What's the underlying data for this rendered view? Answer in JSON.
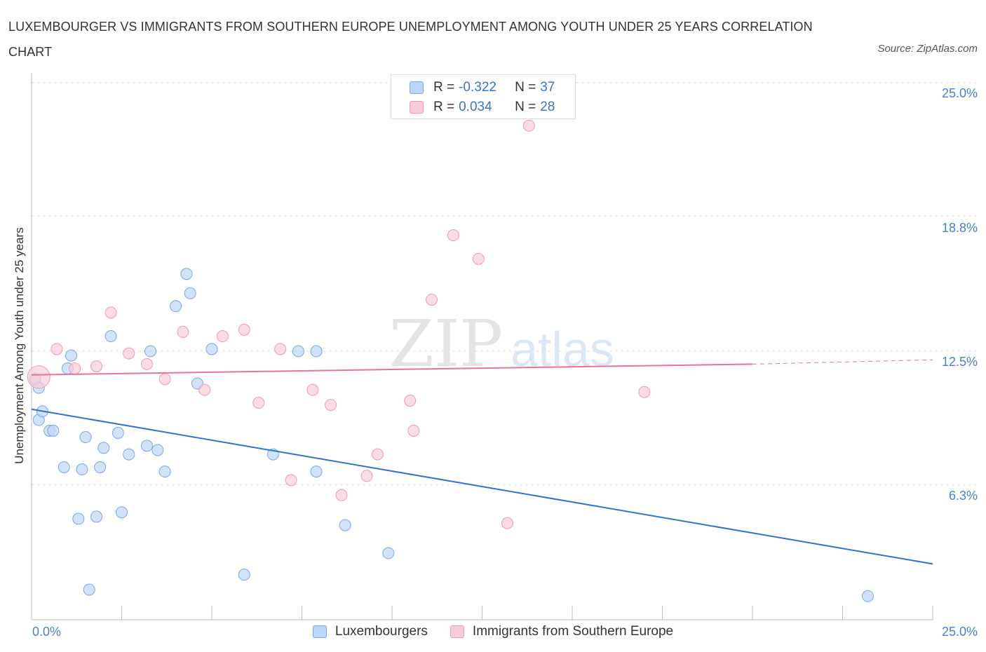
{
  "title": "LUXEMBOURGER VS IMMIGRANTS FROM SOUTHERN EUROPE UNEMPLOYMENT AMONG YOUTH UNDER 25 YEARS CORRELATION CHART",
  "source": "Source: ZipAtlas.com",
  "watermark": {
    "zip": "ZIP",
    "atlas": "atlas"
  },
  "legend_top": {
    "rows": [
      {
        "r_label": "R =",
        "r_value": "-0.322",
        "n_label": "N =",
        "n_value": "37"
      },
      {
        "r_label": "R =",
        "r_value": "0.034",
        "n_label": "N =",
        "n_value": "28"
      }
    ]
  },
  "legend_bottom": {
    "series1": "Luxembourgers",
    "series2": "Immigrants from Southern Europe"
  },
  "colors": {
    "blue_fill": "#bdd5f7",
    "blue_stroke": "#7aa6e6",
    "blue_line": "#2f73d1",
    "pink_fill": "#f9ccd9",
    "pink_stroke": "#ec9ab4",
    "pink_line": "#e8739a",
    "tick_text": "#4a7fcf",
    "grid": "#dddddd"
  },
  "chart_data": {
    "type": "scatter",
    "title": "LUXEMBOURGER VS IMMIGRANTS FROM SOUTHERN EUROPE UNEMPLOYMENT AMONG YOUTH UNDER 25 YEARS CORRELATION CHART",
    "xlabel": "",
    "ylabel": "Unemployment Among Youth under 25 years",
    "xlim": [
      0,
      25
    ],
    "ylim": [
      0,
      25
    ],
    "x_ticks": [
      "0.0%",
      "25.0%"
    ],
    "y_ticks": [
      {
        "value": 25.0,
        "label": "25.0%"
      },
      {
        "value": 18.8,
        "label": "18.8%"
      },
      {
        "value": 12.5,
        "label": "12.5%"
      },
      {
        "value": 6.3,
        "label": "6.3%"
      }
    ],
    "series": [
      {
        "name": "Luxembourgers",
        "r": -0.322,
        "n": 37,
        "trend": {
          "x": [
            0,
            25
          ],
          "y": [
            9.8,
            2.6
          ]
        },
        "points": [
          [
            0.1,
            11.2
          ],
          [
            0.2,
            9.3
          ],
          [
            0.3,
            9.7
          ],
          [
            0.5,
            8.8
          ],
          [
            0.6,
            8.8
          ],
          [
            0.2,
            10.8
          ],
          [
            0.9,
            7.1
          ],
          [
            1.1,
            12.3
          ],
          [
            1.0,
            11.7
          ],
          [
            1.4,
            7.0
          ],
          [
            1.5,
            8.5
          ],
          [
            1.3,
            4.7
          ],
          [
            1.8,
            4.8
          ],
          [
            2.0,
            8.0
          ],
          [
            1.9,
            7.1
          ],
          [
            2.2,
            13.2
          ],
          [
            2.4,
            8.7
          ],
          [
            2.5,
            5.0
          ],
          [
            2.7,
            7.7
          ],
          [
            3.2,
            8.1
          ],
          [
            3.3,
            12.5
          ],
          [
            3.5,
            7.9
          ],
          [
            3.7,
            6.9
          ],
          [
            4.0,
            14.6
          ],
          [
            4.3,
            16.1
          ],
          [
            4.4,
            15.2
          ],
          [
            4.6,
            11.0
          ],
          [
            5.0,
            12.6
          ],
          [
            5.9,
            2.1
          ],
          [
            6.7,
            7.7
          ],
          [
            7.4,
            12.5
          ],
          [
            7.9,
            6.9
          ],
          [
            7.9,
            12.5
          ],
          [
            8.7,
            4.4
          ],
          [
            9.9,
            3.1
          ],
          [
            1.6,
            1.4
          ],
          [
            23.2,
            1.1
          ]
        ]
      },
      {
        "name": "Immigrants from Southern Europe",
        "r": 0.034,
        "n": 28,
        "trend": {
          "x": [
            0,
            20
          ],
          "y": [
            11.4,
            11.9
          ],
          "dashed_to": [
            25,
            12.1
          ]
        },
        "points": [
          [
            0.2,
            11.3
          ],
          [
            0.7,
            12.6
          ],
          [
            1.2,
            11.7
          ],
          [
            1.8,
            11.8
          ],
          [
            2.2,
            14.3
          ],
          [
            2.7,
            12.4
          ],
          [
            3.2,
            11.9
          ],
          [
            3.7,
            11.2
          ],
          [
            4.2,
            13.4
          ],
          [
            4.8,
            10.7
          ],
          [
            5.3,
            13.2
          ],
          [
            5.9,
            13.5
          ],
          [
            6.3,
            10.1
          ],
          [
            6.9,
            12.6
          ],
          [
            7.2,
            6.5
          ],
          [
            7.8,
            10.7
          ],
          [
            8.3,
            10.0
          ],
          [
            8.6,
            5.8
          ],
          [
            9.3,
            6.7
          ],
          [
            9.6,
            7.7
          ],
          [
            10.5,
            10.2
          ],
          [
            10.6,
            8.8
          ],
          [
            11.1,
            14.9
          ],
          [
            11.7,
            17.9
          ],
          [
            12.4,
            16.8
          ],
          [
            13.2,
            4.5
          ],
          [
            13.8,
            23.0
          ],
          [
            17.0,
            10.6
          ]
        ]
      }
    ]
  }
}
